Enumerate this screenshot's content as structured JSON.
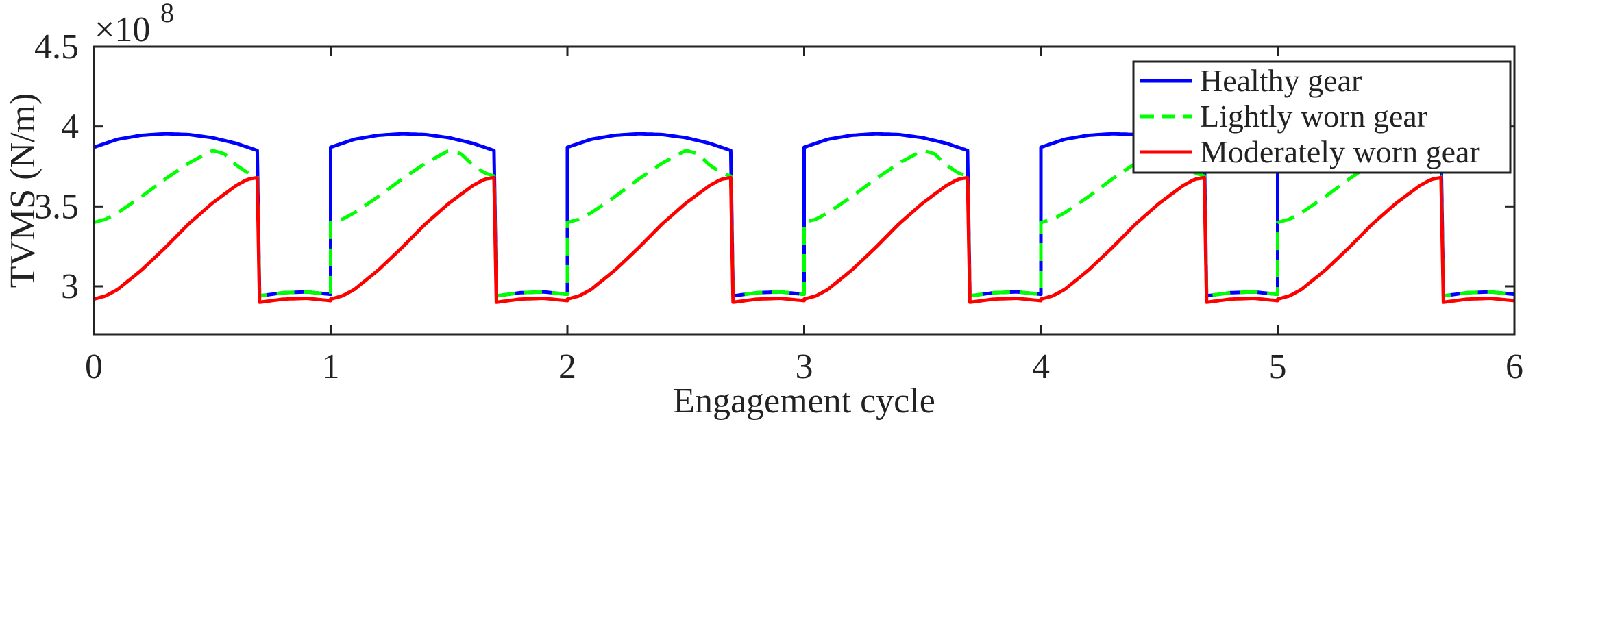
{
  "chart_data": {
    "type": "line",
    "xlabel": "Engagement cycle",
    "ylabel": "TVMS (N/m)",
    "y_exponent_label": "×10",
    "y_exponent_power": "8",
    "xlim": [
      0,
      6
    ],
    "ylim": [
      2.7,
      4.5
    ],
    "xticks": [
      0,
      1,
      2,
      3,
      4,
      5,
      6
    ],
    "xtick_labels": [
      "0",
      "1",
      "2",
      "3",
      "4",
      "5",
      "6"
    ],
    "yticks": [
      3.0,
      3.5,
      4.0,
      4.5
    ],
    "ytick_labels": [
      "3",
      "3.5",
      "4",
      "4.5"
    ],
    "grid": false,
    "legend_position": "top-right",
    "period": 1,
    "series": [
      {
        "name": "Healthy gear",
        "color": "#0000ff",
        "style": "solid",
        "double_tooth_meshing_values": [
          [
            0.0,
            3.87
          ],
          [
            0.1,
            3.92
          ],
          [
            0.2,
            3.945
          ],
          [
            0.3,
            3.955
          ],
          [
            0.4,
            3.95
          ],
          [
            0.5,
            3.93
          ],
          [
            0.6,
            3.895
          ],
          [
            0.69,
            3.85
          ]
        ],
        "single_tooth_meshing_values": [
          [
            0.7,
            2.94
          ],
          [
            0.8,
            2.96
          ],
          [
            0.9,
            2.965
          ],
          [
            1.0,
            2.95
          ]
        ]
      },
      {
        "name": "Lightly worn gear",
        "color": "#00ff00",
        "style": "dashed",
        "double_tooth_meshing_values": [
          [
            0.0,
            3.4
          ],
          [
            0.05,
            3.42
          ],
          [
            0.1,
            3.46
          ],
          [
            0.2,
            3.56
          ],
          [
            0.3,
            3.67
          ],
          [
            0.4,
            3.77
          ],
          [
            0.5,
            3.85
          ],
          [
            0.55,
            3.83
          ],
          [
            0.6,
            3.76
          ],
          [
            0.65,
            3.71
          ],
          [
            0.69,
            3.69
          ]
        ],
        "single_tooth_meshing_values": [
          [
            0.7,
            2.94
          ],
          [
            0.8,
            2.96
          ],
          [
            0.9,
            2.965
          ],
          [
            1.0,
            2.95
          ]
        ]
      },
      {
        "name": "Moderately worn gear",
        "color": "#ff0000",
        "style": "solid",
        "double_tooth_meshing_values": [
          [
            0.0,
            2.92
          ],
          [
            0.05,
            2.94
          ],
          [
            0.1,
            2.98
          ],
          [
            0.2,
            3.1
          ],
          [
            0.3,
            3.24
          ],
          [
            0.4,
            3.39
          ],
          [
            0.5,
            3.52
          ],
          [
            0.6,
            3.63
          ],
          [
            0.65,
            3.67
          ],
          [
            0.69,
            3.68
          ]
        ],
        "single_tooth_meshing_values": [
          [
            0.7,
            2.9
          ],
          [
            0.8,
            2.92
          ],
          [
            0.9,
            2.925
          ],
          [
            1.0,
            2.91
          ]
        ]
      }
    ]
  }
}
